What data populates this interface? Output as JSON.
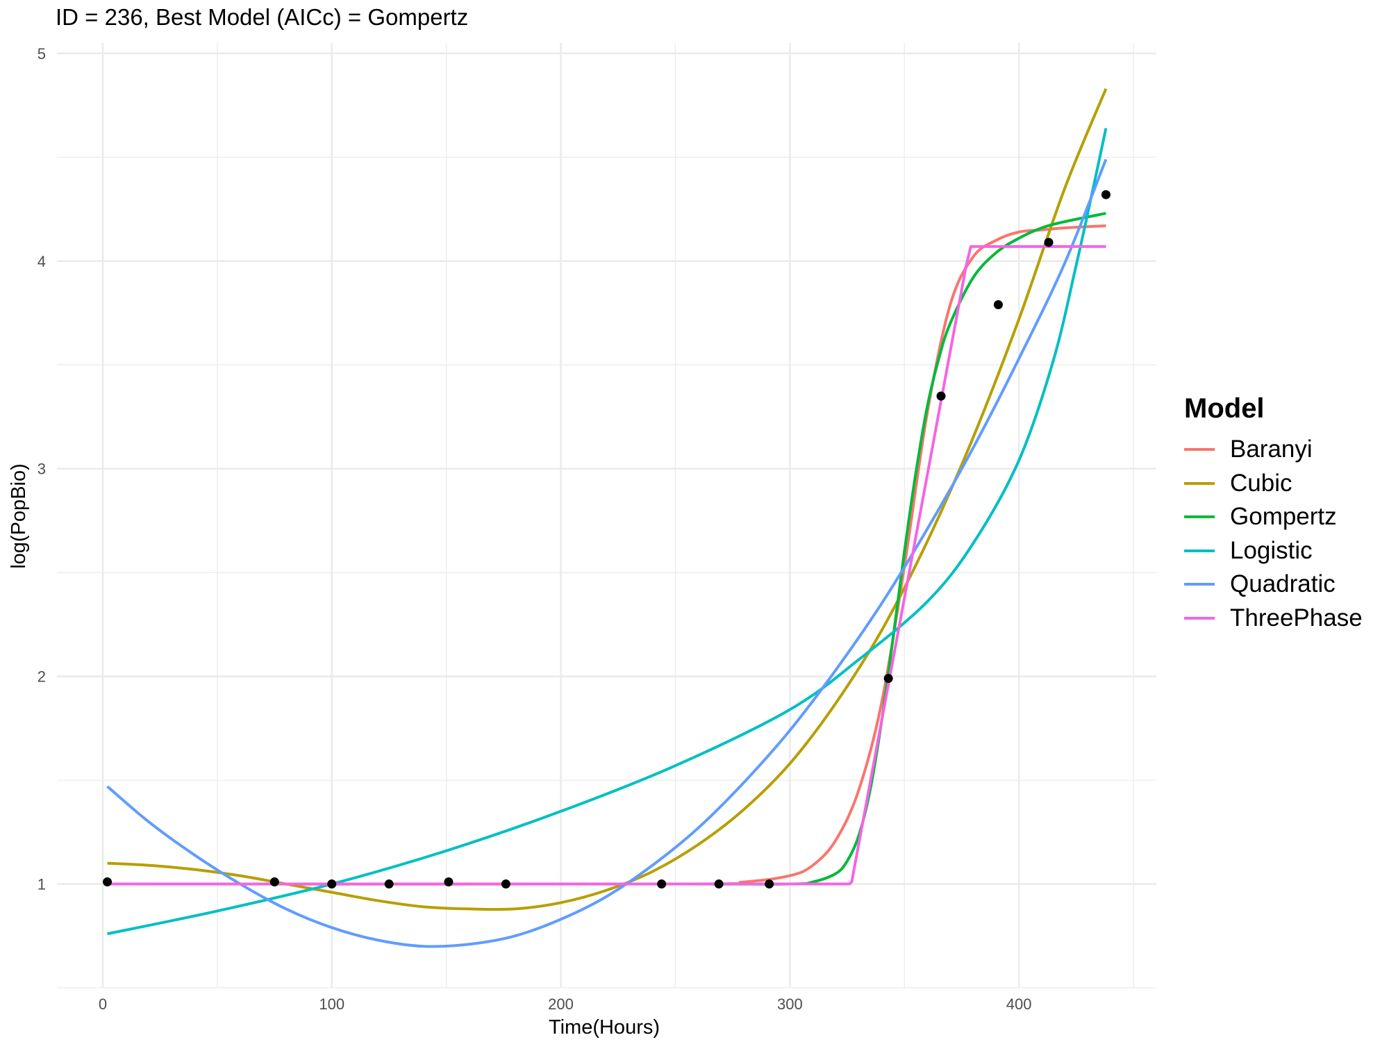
{
  "chart_data": {
    "type": "line",
    "title": "ID = 236, Best Model (AICc) = Gompertz",
    "xlabel": "Time(Hours)",
    "ylabel": "log(PopBio)",
    "xlim": [
      -20,
      460
    ],
    "ylim": [
      0.5,
      5.05
    ],
    "xticks": [
      0,
      100,
      200,
      300,
      400
    ],
    "yticks": [
      1,
      2,
      3,
      4,
      5
    ],
    "grid": true,
    "legend_title": "Model",
    "legend_position": "right",
    "points": {
      "x": [
        2,
        75,
        100,
        125,
        151,
        176,
        244,
        269,
        291,
        343,
        366,
        391,
        413,
        438
      ],
      "y": [
        1.01,
        1.01,
        1.0,
        1.0,
        1.01,
        1.0,
        1.0,
        1.0,
        1.0,
        1.99,
        3.35,
        3.79,
        4.09,
        4.32
      ],
      "color": "#000000"
    },
    "series": [
      {
        "name": "Baranyi",
        "color": "#F8766D",
        "x": [
          2,
          250,
          280,
          300,
          310,
          320,
          330,
          340,
          350,
          360,
          370,
          380,
          390,
          400,
          410,
          420,
          438
        ],
        "y": [
          1.0,
          1.0,
          1.01,
          1.04,
          1.09,
          1.21,
          1.45,
          1.87,
          2.53,
          3.27,
          3.79,
          4.02,
          4.1,
          4.14,
          4.15,
          4.16,
          4.17
        ]
      },
      {
        "name": "Cubic",
        "color": "#B79F00",
        "x": [
          2,
          20,
          40,
          60,
          80,
          100,
          120,
          140,
          160,
          180,
          200,
          220,
          240,
          260,
          280,
          300,
          320,
          340,
          360,
          380,
          400,
          420,
          438
        ],
        "y": [
          1.1,
          1.09,
          1.07,
          1.04,
          1.0,
          0.96,
          0.92,
          0.89,
          0.88,
          0.88,
          0.91,
          0.97,
          1.06,
          1.19,
          1.36,
          1.58,
          1.87,
          2.22,
          2.65,
          3.15,
          3.72,
          4.35,
          4.83
        ]
      },
      {
        "name": "Gompertz",
        "color": "#00BA38",
        "x": [
          2,
          250,
          300,
          310,
          320,
          325,
          330,
          335,
          340,
          345,
          350,
          355,
          360,
          365,
          370,
          380,
          390,
          400,
          410,
          420,
          438
        ],
        "y": [
          1.0,
          1.0,
          1.0,
          1.01,
          1.05,
          1.11,
          1.23,
          1.45,
          1.78,
          2.18,
          2.6,
          2.98,
          3.3,
          3.53,
          3.7,
          3.92,
          4.04,
          4.11,
          4.16,
          4.19,
          4.23
        ]
      },
      {
        "name": "Logistic",
        "color": "#00BFC4",
        "x": [
          2,
          50,
          100,
          150,
          200,
          250,
          300,
          330,
          360,
          380,
          400,
          415,
          425,
          432,
          438
        ],
        "y": [
          0.76,
          0.87,
          1.0,
          1.16,
          1.35,
          1.57,
          1.84,
          2.08,
          2.36,
          2.64,
          3.04,
          3.52,
          3.98,
          4.33,
          4.64
        ]
      },
      {
        "name": "Quadratic",
        "color": "#619CFF",
        "x": [
          2,
          20,
          40,
          60,
          80,
          100,
          120,
          140,
          160,
          180,
          200,
          220,
          240,
          260,
          280,
          300,
          320,
          340,
          360,
          380,
          400,
          420,
          438
        ],
        "y": [
          1.47,
          1.3,
          1.14,
          1.0,
          0.88,
          0.79,
          0.73,
          0.7,
          0.71,
          0.75,
          0.83,
          0.94,
          1.09,
          1.27,
          1.49,
          1.74,
          2.03,
          2.35,
          2.71,
          3.1,
          3.53,
          3.99,
          4.49
        ]
      },
      {
        "name": "ThreePhase",
        "color": "#F564E3",
        "x": [
          2,
          326,
          327,
          377,
          379,
          438
        ],
        "y": [
          1.0,
          1.0,
          1.01,
          3.98,
          4.07,
          4.07
        ]
      }
    ]
  }
}
